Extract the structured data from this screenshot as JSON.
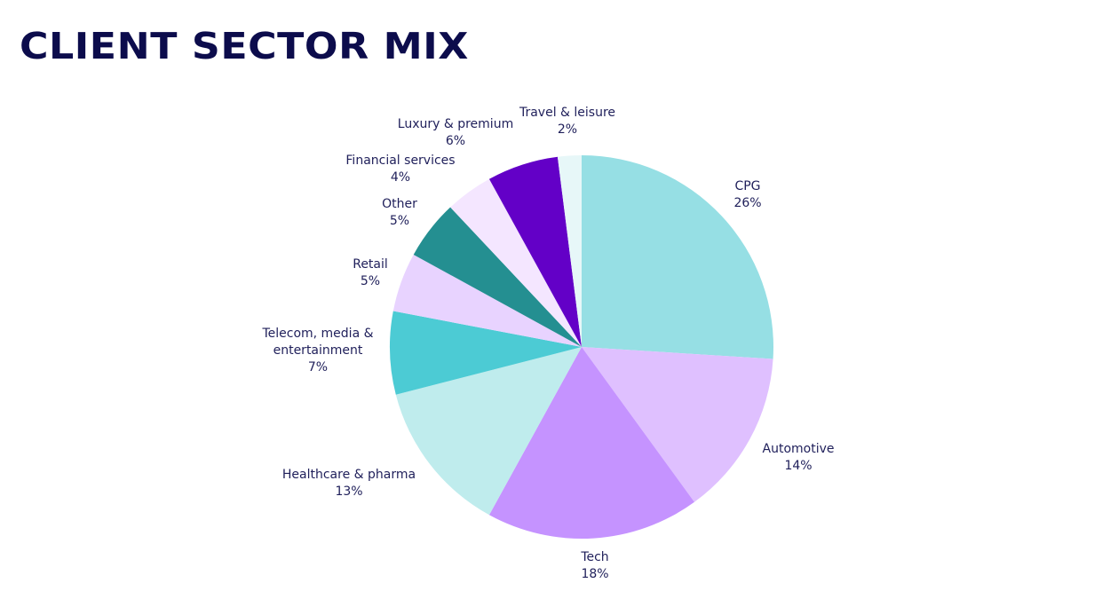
{
  "title": "CLIENT SECTOR MIX",
  "chart_data": {
    "type": "pie",
    "start_angle_deg": 0,
    "direction": "clockwise",
    "slices": [
      {
        "name": "CPG",
        "value": 26,
        "label": [
          "CPG",
          "26%"
        ],
        "color": "#96dfe4"
      },
      {
        "name": "Automotive",
        "value": 14,
        "label": [
          "Automotive",
          "14%"
        ],
        "color": "#dfc0ff"
      },
      {
        "name": "Tech",
        "value": 18,
        "label": [
          "Tech",
          "18%"
        ],
        "color": "#c593ff"
      },
      {
        "name": "Healthcare & pharma",
        "value": 13,
        "label": [
          "Healthcare & pharma",
          "13%"
        ],
        "color": "#bfeced"
      },
      {
        "name": "Telecom, media & entertainment",
        "value": 7,
        "label": [
          "Telecom, media &",
          "entertainment",
          "7%"
        ],
        "color": "#4ccbd4"
      },
      {
        "name": "Retail",
        "value": 5,
        "label": [
          "Retail",
          "5%"
        ],
        "color": "#e8d3ff"
      },
      {
        "name": "Other",
        "value": 5,
        "label": [
          "Other",
          "5%"
        ],
        "color": "#248f91"
      },
      {
        "name": "Financial services",
        "value": 4,
        "label": [
          "Financial services",
          "4%"
        ],
        "color": "#f4e6ff"
      },
      {
        "name": "Luxury & premium",
        "value": 6,
        "label": [
          "Luxury & premium",
          "6%"
        ],
        "color": "#6300c7"
      },
      {
        "name": "Travel & leisure",
        "value": 2,
        "label": [
          "Travel & leisure",
          "2%"
        ],
        "color": "#e7f7f8"
      }
    ]
  }
}
